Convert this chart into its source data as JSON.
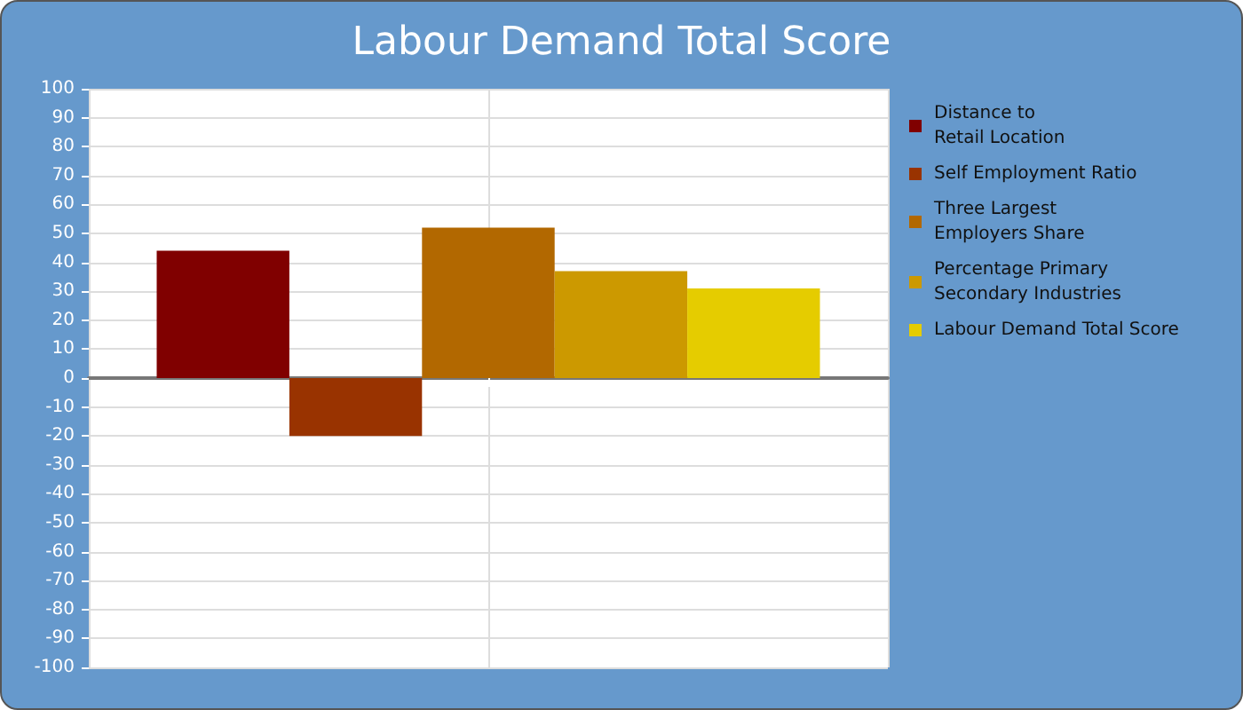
{
  "chart_data": {
    "type": "bar",
    "title": "Labour Demand Total Score",
    "categories": [
      null
    ],
    "series": [
      {
        "name": "Distance to\nRetail Location",
        "color": "#800000",
        "values": [
          44
        ]
      },
      {
        "name": "Self Employment Ratio",
        "color": "#993300",
        "values": [
          -20
        ]
      },
      {
        "name": "Three Largest\nEmployers Share",
        "color": "#b26800",
        "values": [
          52
        ]
      },
      {
        "name": "Percentage Primary\nSecondary Industries",
        "color": "#cc9900",
        "values": [
          37
        ]
      },
      {
        "name": "Labour Demand Total Score",
        "color": "#e5cc00",
        "values": [
          31
        ]
      }
    ],
    "ylim": [
      -100,
      100
    ],
    "yticks": [
      -100,
      -90,
      -80,
      -70,
      -60,
      -50,
      -40,
      -30,
      -20,
      -10,
      0,
      10,
      20,
      30,
      40,
      50,
      60,
      70,
      80,
      90,
      100
    ],
    "grid": true,
    "legend": "right"
  }
}
